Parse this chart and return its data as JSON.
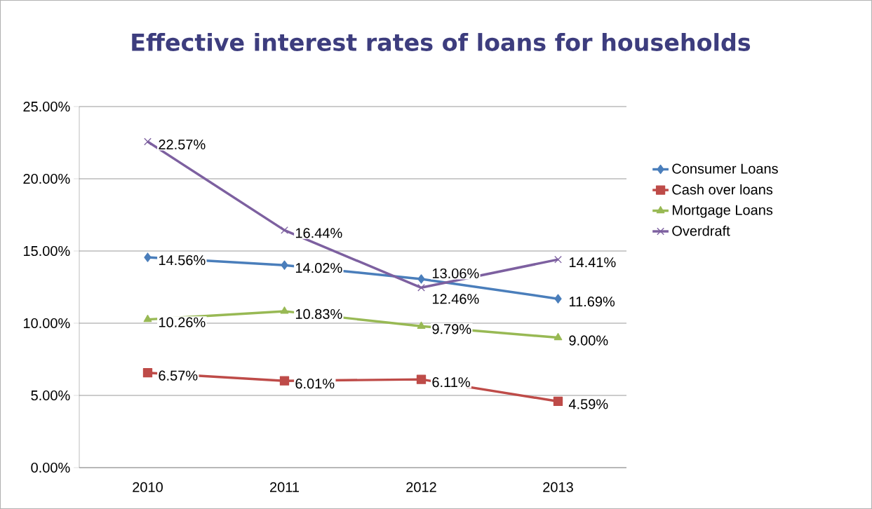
{
  "chart_data": {
    "type": "line",
    "title": "Effective interest rates of loans for households",
    "categories": [
      "2010",
      "2011",
      "2012",
      "2013"
    ],
    "series": [
      {
        "name": "Consumer Loans",
        "color": "#4a7ebb",
        "marker": "diamond",
        "values": [
          14.56,
          14.02,
          13.06,
          11.69
        ],
        "value_labels": [
          "14.56%",
          "14.02%",
          "13.06%",
          "11.69%"
        ]
      },
      {
        "name": "Cash over loans",
        "color": "#be4b48",
        "marker": "square",
        "values": [
          6.57,
          6.01,
          6.11,
          4.59
        ],
        "value_labels": [
          "6.57%",
          "6.01%",
          "6.11%",
          "4.59%"
        ]
      },
      {
        "name": "Mortgage Loans",
        "color": "#98b954",
        "marker": "triangle",
        "values": [
          10.26,
          10.83,
          9.79,
          9.0
        ],
        "value_labels": [
          "10.26%",
          "10.83%",
          "9.79%",
          "9.00%"
        ]
      },
      {
        "name": "Overdraft",
        "color": "#7d60a0",
        "marker": "cross",
        "values": [
          22.57,
          16.44,
          12.46,
          14.41
        ],
        "value_labels": [
          "22.57%",
          "16.44%",
          "12.46%",
          "14.41%"
        ]
      }
    ],
    "ylim": [
      0,
      25
    ],
    "yticks": [
      {
        "value": 0,
        "label": "0.00%"
      },
      {
        "value": 5,
        "label": "5.00%"
      },
      {
        "value": 10,
        "label": "10.00%"
      },
      {
        "value": 15,
        "label": "15.00%"
      },
      {
        "value": 20,
        "label": "20.00%"
      },
      {
        "value": 25,
        "label": "25.00%"
      }
    ],
    "grid": "y",
    "legend": "right",
    "line_style": "solid"
  }
}
